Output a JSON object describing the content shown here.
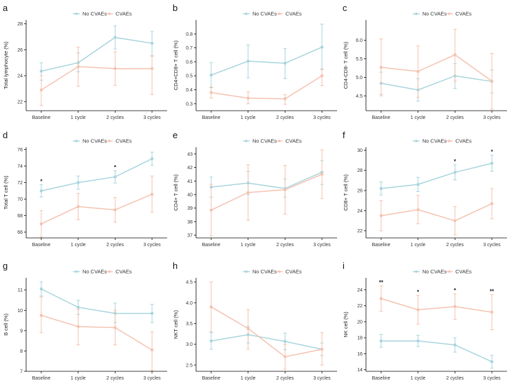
{
  "colors": {
    "no_cvaes": "#a8d5dd",
    "cvaes": "#f5c2b0",
    "axis": "#000000"
  },
  "chart_data": [
    {
      "panel": "a",
      "type": "line",
      "ylabel": "Total lymphocyte (%)",
      "categories": [
        "Baseline",
        "1 cycle",
        "2 cycles",
        "3 cycles"
      ],
      "ylim": [
        21.3,
        28.3
      ],
      "yticks": [
        22,
        24,
        26,
        28
      ],
      "legend": [
        "No CVAEs",
        "CVAEs"
      ],
      "series": [
        {
          "name": "No CVAEs",
          "values": [
            24.35,
            25.0,
            26.95,
            26.5
          ],
          "err_low": [
            0.7,
            0.7,
            0.9,
            1.0
          ],
          "err_high": [
            0.65,
            0.75,
            0.9,
            0.9
          ]
        },
        {
          "name": "CVAEs",
          "values": [
            22.9,
            24.7,
            24.55,
            24.55
          ],
          "err_low": [
            1.2,
            1.5,
            1.3,
            2.0
          ],
          "err_high": [
            1.1,
            1.5,
            1.3,
            1.0
          ]
        }
      ],
      "annotations": []
    },
    {
      "panel": "b",
      "type": "line",
      "ylabel": "CD4+CD8+ T cell (%)",
      "categories": [
        "Baseline",
        "1 cycle",
        "2 cycles",
        "3 cycles"
      ],
      "ylim": [
        0.25,
        0.9
      ],
      "yticks": [
        0.3,
        0.4,
        0.5,
        0.6,
        0.7,
        0.8
      ],
      "legend": [
        "No CVAEs",
        "CVAEs"
      ],
      "series": [
        {
          "name": "No CVAEs",
          "values": [
            0.505,
            0.605,
            0.59,
            0.705
          ],
          "err_low": [
            0.09,
            0.12,
            0.11,
            0.16
          ],
          "err_high": [
            0.09,
            0.115,
            0.105,
            0.165
          ]
        },
        {
          "name": "CVAEs",
          "values": [
            0.38,
            0.34,
            0.335,
            0.5
          ],
          "err_low": [
            0.04,
            0.04,
            0.04,
            0.07
          ],
          "err_high": [
            0.04,
            0.045,
            0.03,
            0.05
          ]
        }
      ],
      "annotations": []
    },
    {
      "panel": "c",
      "type": "line",
      "ylabel": "CD4-CD8- T cell (%)",
      "categories": [
        "Baseline",
        "1 cycle",
        "2 cycles",
        "3 cycles"
      ],
      "ylim": [
        4.1,
        6.55
      ],
      "yticks": [
        4.5,
        5.0,
        5.5,
        6.0
      ],
      "legend": [
        "No CVAEs",
        "CVAEs"
      ],
      "series": [
        {
          "name": "No CVAEs",
          "values": [
            4.84,
            4.66,
            5.04,
            4.89
          ],
          "err_low": [
            0.3,
            0.3,
            0.34,
            0.31
          ],
          "err_high": [
            0.3,
            0.3,
            0.33,
            0.31
          ]
        },
        {
          "name": "CVAEs",
          "values": [
            5.27,
            5.16,
            5.61,
            4.9
          ],
          "err_low": [
            0.77,
            0.7,
            0.71,
            0.76
          ],
          "err_high": [
            0.77,
            0.69,
            0.69,
            0.75
          ]
        }
      ],
      "annotations": []
    },
    {
      "panel": "d",
      "type": "line",
      "ylabel": "Total T cell (%)",
      "categories": [
        "Baseline",
        "1 cycle",
        "2 cycles",
        "3 cycles"
      ],
      "ylim": [
        65.3,
        76.3
      ],
      "yticks": [
        66,
        68,
        70,
        72,
        74,
        76
      ],
      "legend": [
        "No CVAEs",
        "CVAEs"
      ],
      "series": [
        {
          "name": "No CVAEs",
          "values": [
            71.0,
            72.0,
            72.7,
            74.9
          ],
          "err_low": [
            0.75,
            0.8,
            0.75,
            0.8
          ],
          "err_high": [
            0.75,
            0.8,
            0.75,
            0.8
          ]
        },
        {
          "name": "CVAEs",
          "values": [
            67.0,
            69.1,
            68.7,
            70.6
          ],
          "err_low": [
            1.6,
            1.6,
            1.5,
            2.2
          ],
          "err_high": [
            1.6,
            1.6,
            1.5,
            2.2
          ]
        }
      ],
      "annotations": [
        {
          "category": "Baseline",
          "label": "*"
        },
        {
          "category": "2 cycles",
          "label": "*"
        }
      ]
    },
    {
      "panel": "e",
      "type": "line",
      "ylabel": "CD4+ T cell (%)",
      "categories": [
        "Baseline",
        "1 cycle",
        "2 cycles",
        "3 cycles"
      ],
      "ylim": [
        36.8,
        43.5
      ],
      "yticks": [
        37,
        38,
        39,
        40,
        41,
        42,
        43
      ],
      "legend": [
        "No CVAEs",
        "CVAEs"
      ],
      "series": [
        {
          "name": "No CVAEs",
          "values": [
            40.55,
            40.85,
            40.45,
            41.65
          ],
          "err_low": [
            0.75,
            0.85,
            0.65,
            0.9
          ],
          "err_high": [
            0.75,
            0.85,
            0.7,
            0.85
          ]
        },
        {
          "name": "CVAEs",
          "values": [
            38.85,
            40.15,
            40.35,
            41.5
          ],
          "err_low": [
            1.9,
            2.05,
            1.8,
            1.8
          ],
          "err_high": [
            1.9,
            2.05,
            1.8,
            1.8
          ]
        }
      ],
      "annotations": []
    },
    {
      "panel": "f",
      "type": "line",
      "ylabel": "CD8+ T cell (%)",
      "categories": [
        "Baseline",
        "1 cycle",
        "2 cycles",
        "3 cycles"
      ],
      "ylim": [
        21.3,
        30.3
      ],
      "yticks": [
        22,
        24,
        26,
        28,
        30
      ],
      "legend": [
        "No CVAEs",
        "CVAEs"
      ],
      "series": [
        {
          "name": "No CVAEs",
          "values": [
            26.2,
            26.6,
            27.8,
            28.7
          ],
          "err_low": [
            0.65,
            0.7,
            0.75,
            0.8
          ],
          "err_high": [
            0.65,
            0.7,
            0.75,
            0.8
          ]
        },
        {
          "name": "CVAEs",
          "values": [
            23.5,
            24.1,
            23.0,
            24.7
          ],
          "err_low": [
            1.5,
            1.4,
            1.4,
            1.5
          ],
          "err_high": [
            1.5,
            1.4,
            1.4,
            1.5
          ]
        }
      ],
      "annotations": [
        {
          "category": "2 cycles",
          "label": "*"
        },
        {
          "category": "3 cycles",
          "label": "*"
        }
      ]
    },
    {
      "panel": "g",
      "type": "line",
      "ylabel": "B cell (%)",
      "categories": [
        "Baseline",
        "1 cycle",
        "2 cycles",
        "3 cycles"
      ],
      "ylim": [
        7.0,
        11.6
      ],
      "yticks": [
        7,
        8,
        9,
        10,
        11
      ],
      "legend": [
        "No CVAEs",
        "CVAEs"
      ],
      "series": [
        {
          "name": "No CVAEs",
          "values": [
            11.05,
            10.15,
            9.85,
            9.85
          ],
          "err_low": [
            0.35,
            0.35,
            0.45,
            0.45
          ],
          "err_high": [
            0.35,
            0.35,
            0.5,
            0.45
          ]
        },
        {
          "name": "CVAEs",
          "values": [
            9.75,
            9.2,
            9.15,
            8.05
          ],
          "err_low": [
            0.85,
            0.9,
            0.85,
            1.0
          ],
          "err_high": [
            0.9,
            0.85,
            0.85,
            0.9
          ]
        }
      ],
      "annotations": []
    },
    {
      "panel": "h",
      "type": "line",
      "ylabel": "NKT cell (%)",
      "categories": [
        "Baseline",
        "1 cycle",
        "2 cycles",
        "3 cycles"
      ],
      "ylim": [
        2.35,
        4.6
      ],
      "yticks": [
        2.5,
        3.0,
        3.5,
        4.0,
        4.5
      ],
      "legend": [
        "No CVAEs",
        "CVAEs"
      ],
      "series": [
        {
          "name": "No CVAEs",
          "values": [
            3.08,
            3.23,
            3.07,
            2.88
          ],
          "err_low": [
            0.2,
            0.2,
            0.2,
            0.15
          ],
          "err_high": [
            0.2,
            0.2,
            0.2,
            0.15
          ]
        },
        {
          "name": "CVAEs",
          "values": [
            3.9,
            3.38,
            2.7,
            2.88
          ],
          "err_low": [
            0.6,
            0.5,
            0.3,
            0.38
          ],
          "err_high": [
            0.6,
            0.45,
            0.3,
            0.4
          ]
        }
      ],
      "annotations": []
    },
    {
      "panel": "i",
      "type": "line",
      "ylabel": "NK cell (%)",
      "categories": [
        "Baseline",
        "1 cycle",
        "2 cycles",
        "3 cycles"
      ],
      "ylim": [
        13.8,
        25.5
      ],
      "yticks": [
        14,
        16,
        18,
        20,
        22,
        24
      ],
      "legend": [
        "No CVAEs",
        "CVAEs"
      ],
      "series": [
        {
          "name": "No CVAEs",
          "values": [
            17.6,
            17.6,
            17.1,
            15.0
          ],
          "err_low": [
            0.8,
            0.7,
            0.9,
            0.8
          ],
          "err_high": [
            0.8,
            0.7,
            0.9,
            0.8
          ]
        },
        {
          "name": "CVAEs",
          "values": [
            22.9,
            21.5,
            21.9,
            21.2
          ],
          "err_low": [
            1.6,
            1.8,
            1.6,
            2.2
          ],
          "err_high": [
            1.6,
            1.8,
            1.6,
            2.2
          ]
        }
      ],
      "annotations": [
        {
          "category": "Baseline",
          "label": "**"
        },
        {
          "category": "1 cycle",
          "label": "*"
        },
        {
          "category": "2 cycles",
          "label": "*"
        },
        {
          "category": "3 cycles",
          "label": "**"
        }
      ]
    }
  ]
}
